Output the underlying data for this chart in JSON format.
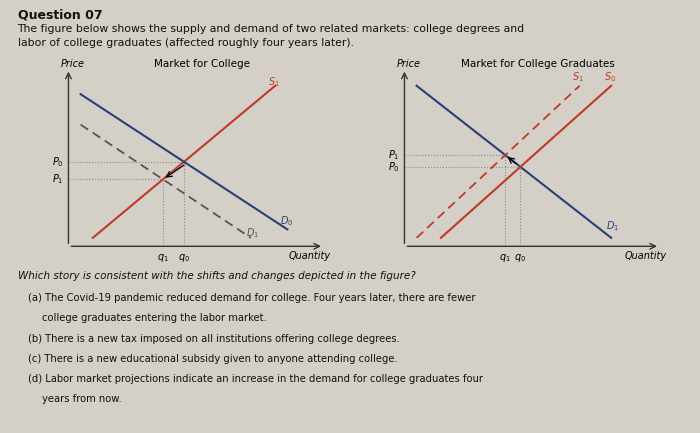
{
  "bg_color": "#d4d0c8",
  "supply_color": "#c0392b",
  "demand_color_left": "#2c3e7a",
  "demand_color_right": "#2c3e7a",
  "dashed_demand_color": "#555555",
  "axis_color": "#333333",
  "dotted_color": "#888888",
  "text_color": "#111111",
  "left_title": "Market for College",
  "right_title": "Market for College Graduates",
  "price_label": "Price",
  "quantity_label": "Quantity",
  "left_supply_label": "S₁",
  "left_demand0_label": "D₀",
  "left_demand1_label": "D₁",
  "right_supply0_label": "S₀",
  "right_supply1_label": "S₁",
  "right_demand_label": "D₁",
  "font_size": 7,
  "title_fontsize": 8,
  "q_title": "Question 07",
  "q_desc1": "The figure below shows the supply and demand of two related markets: college degrees and",
  "q_desc2": "labor of college graduates (affected roughly four years later).",
  "ans_q": "Which story is consistent with the shifts and changes depicted in the figure?",
  "ans_a": "(a) The Covid-19 pandemic reduced demand for college. Four years later, there are fewer",
  "ans_a2": "    college graduates entering the labor market.",
  "ans_b": "(b) There is a new tax imposed on all institutions offering college degrees.",
  "ans_c": "(c) There is a new educational subsidy given to anyone attending college.",
  "ans_d": "(d) Labor market projections indicate an increase in the demand for college graduates four",
  "ans_d2": "    years from now."
}
